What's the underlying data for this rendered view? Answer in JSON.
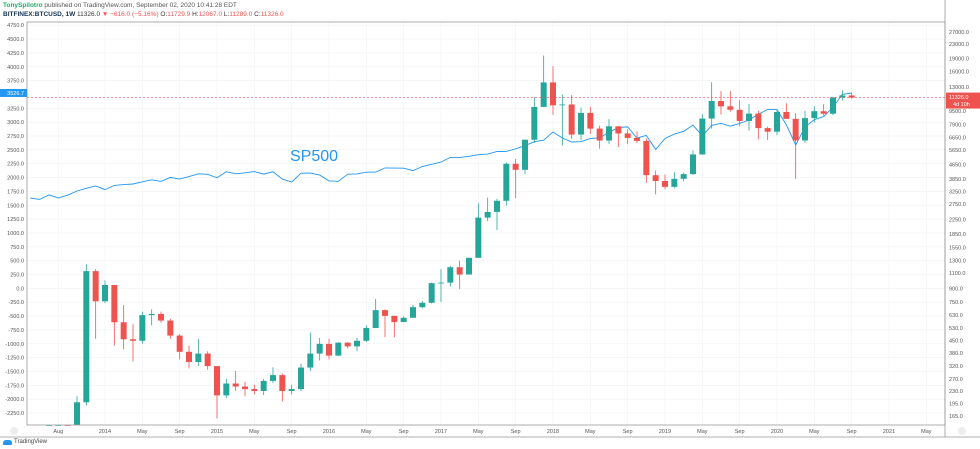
{
  "header": {
    "author": "TonySpilotro",
    "published_text": "published on TradingView.com, September 02, 2020 10:41:28 EDT",
    "symbol": "BITFINEX:BTCUSD, 1W",
    "last": "11326.0",
    "change": "▼ −616.0 (−5.16%)",
    "open_label": "O:",
    "open": "11729.9",
    "high_label": "H:",
    "high": "12067.0",
    "low_label": "L:",
    "low": "11289.0",
    "close_label": "C:",
    "close": "11326.0"
  },
  "footer": {
    "brand": "TradingView"
  },
  "colors": {
    "up": "#26a69a",
    "down": "#ef5350",
    "sp500": "#2196f3",
    "grid": "#eef2f6",
    "axis": "#999"
  },
  "chart_data": {
    "type": "candlestick+line",
    "annotation": "SP500",
    "price_label": "11326.0",
    "countdown_label": "4d 10h",
    "sp500_label": "3526.7",
    "left_axis": {
      "scale": "linear",
      "ticks": [
        "4750.0",
        "4500.0",
        "4250.0",
        "4000.0",
        "3750.0",
        "3250.0",
        "3000.0",
        "2750.0",
        "2500.0",
        "2250.0",
        "2000.0",
        "1750.0",
        "1500.0",
        "1250.0",
        "1000.0",
        "750.0",
        "500.0",
        "250.0",
        "0.0",
        "-250.0",
        "-500.0",
        "-750.0",
        "-1000.0",
        "-1250.0",
        "-1500.0",
        "-1750.0",
        "-2000.0",
        "-2250.0"
      ]
    },
    "right_axis": {
      "scale": "log",
      "ticks": [
        "27000.0",
        "23000.0",
        "19000.0",
        "16000.0",
        "13000.0",
        "9500.0",
        "7900.0",
        "6650.0",
        "5650.0",
        "4650.0",
        "3850.0",
        "3250.0",
        "2750.0",
        "2250.0",
        "1850.0",
        "1550.0",
        "1300.0",
        "1100.0",
        "900.0",
        "750.0",
        "630.0",
        "530.0",
        "450.0",
        "380.0",
        "320.0",
        "270.0",
        "230.0",
        "195.0",
        "165.0"
      ]
    },
    "x_ticks": [
      {
        "label": "Aug",
        "date": "2013-08"
      },
      {
        "label": "2014",
        "date": "2014-01"
      },
      {
        "label": "May",
        "date": "2014-05"
      },
      {
        "label": "Sep",
        "date": "2014-09"
      },
      {
        "label": "2015",
        "date": "2015-01"
      },
      {
        "label": "May",
        "date": "2015-05"
      },
      {
        "label": "Sep",
        "date": "2015-09"
      },
      {
        "label": "2016",
        "date": "2016-01"
      },
      {
        "label": "May",
        "date": "2016-05"
      },
      {
        "label": "Sep",
        "date": "2016-09"
      },
      {
        "label": "2017",
        "date": "2017-01"
      },
      {
        "label": "May",
        "date": "2017-05"
      },
      {
        "label": "Sep",
        "date": "2017-09"
      },
      {
        "label": "2018",
        "date": "2018-01"
      },
      {
        "label": "May",
        "date": "2018-05"
      },
      {
        "label": "Sep",
        "date": "2018-09"
      },
      {
        "label": "2019",
        "date": "2019-01"
      },
      {
        "label": "May",
        "date": "2019-05"
      },
      {
        "label": "Sep",
        "date": "2019-09"
      },
      {
        "label": "2020",
        "date": "2020-01"
      },
      {
        "label": "May",
        "date": "2020-05"
      },
      {
        "label": "Sep",
        "date": "2020-09"
      },
      {
        "label": "2021",
        "date": "2021-01"
      },
      {
        "label": "May",
        "date": "2021-05"
      }
    ],
    "btc": {
      "start": "2013-07",
      "close": [
        106,
        135,
        133,
        198,
        1130,
        757,
        940,
        573,
        457,
        448,
        630,
        640,
        586,
        480,
        387,
        338,
        378,
        320,
        217,
        254,
        244,
        236,
        230,
        263,
        284,
        230,
        236,
        314,
        378,
        430,
        368,
        437,
        416,
        448,
        531,
        673,
        624,
        575,
        608,
        700,
        742,
        963,
        970,
        1190,
        1080,
        1348,
        2300,
        2480,
        2875,
        4700,
        4340,
        6470,
        10000,
        13850,
        10220,
        10330,
        6930,
        9240,
        7500,
        6400,
        7730,
        7030,
        6630,
        6370,
        4040,
        3740,
        3460,
        3850,
        4100,
        5320,
        8570,
        10820,
        10080,
        9630,
        8300,
        9150,
        7550,
        7200,
        9350,
        8540,
        6410,
        8620,
        9450,
        9140,
        11350,
        11650,
        11326
      ],
      "high": [
        120,
        140,
        145,
        215,
        1240,
        1160,
        1000,
        930,
        720,
        560,
        660,
        680,
        660,
        600,
        490,
        420,
        460,
        390,
        320,
        270,
        300,
        260,
        250,
        270,
        315,
        290,
        250,
        330,
        500,
        465,
        460,
        440,
        440,
        465,
        550,
        780,
        680,
        625,
        620,
        720,
        760,
        970,
        1160,
        1210,
        1300,
        1350,
        2780,
        3000,
        2950,
        4780,
        5010,
        6480,
        11400,
        19800,
        17200,
        11800,
        11700,
        9930,
        10000,
        7790,
        8500,
        7750,
        7430,
        7240,
        6590,
        4300,
        4080,
        4200,
        4180,
        5620,
        9080,
        13880,
        12340,
        12330,
        10950,
        10380,
        9540,
        7700,
        9600,
        10500,
        9200,
        9500,
        10090,
        10380,
        11450,
        12470,
        12070
      ],
      "low": [
        65,
        100,
        110,
        120,
        190,
        460,
        740,
        420,
        400,
        340,
        430,
        550,
        570,
        460,
        350,
        310,
        320,
        305,
        160,
        210,
        230,
        215,
        220,
        218,
        255,
        200,
        220,
        230,
        300,
        345,
        350,
        365,
        405,
        390,
        440,
        530,
        470,
        470,
        590,
        610,
        690,
        735,
        750,
        920,
        890,
        1090,
        1400,
        2200,
        1950,
        2700,
        2980,
        4100,
        6200,
        10900,
        9000,
        6000,
        6550,
        6430,
        7000,
        5750,
        6100,
        5880,
        6100,
        6180,
        3650,
        3130,
        3350,
        3390,
        3720,
        4050,
        5300,
        7500,
        9050,
        9400,
        7740,
        7300,
        6500,
        6440,
        6900,
        8510,
        3850,
        6200,
        8120,
        8900,
        8960,
        10900,
        11150
      ]
    },
    "sp500": {
      "start": "2013-05",
      "close": [
        1630,
        1606,
        1686,
        1633,
        1682,
        1757,
        1806,
        1848,
        1783,
        1859,
        1872,
        1884,
        1924,
        1960,
        1931,
        2003,
        1972,
        2018,
        2068,
        2059,
        1995,
        2105,
        2068,
        2086,
        2107,
        2063,
        2104,
        1972,
        1920,
        2079,
        2080,
        2044,
        1940,
        1932,
        2060,
        2065,
        2097,
        2099,
        2174,
        2171,
        2168,
        2126,
        2199,
        2239,
        2279,
        2364,
        2363,
        2384,
        2412,
        2423,
        2470,
        2472,
        2519,
        2575,
        2648,
        2674,
        2824,
        2714,
        2641,
        2648,
        2705,
        2718,
        2816,
        2902,
        2914,
        2712,
        2760,
        2507,
        2704,
        2784,
        2834,
        2946,
        2752,
        2942,
        2980,
        2926,
        2977,
        3038,
        3141,
        3231,
        3226,
        2954,
        2585,
        2912,
        3044,
        3100,
        3271,
        3500,
        3526
      ]
    }
  }
}
